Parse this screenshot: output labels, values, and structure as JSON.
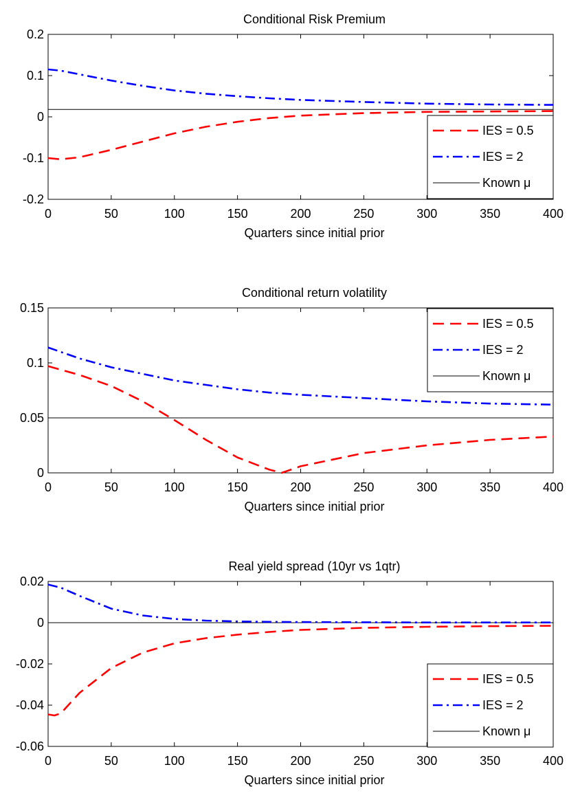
{
  "chart_data": [
    {
      "type": "line",
      "title": "Conditional Risk Premium",
      "xlabel": "Quarters since initial prior",
      "ylabel": "",
      "xlim": [
        0,
        400
      ],
      "ylim": [
        -0.2,
        0.2
      ],
      "xticks": [
        "0",
        "50",
        "100",
        "150",
        "200",
        "250",
        "300",
        "350",
        "400"
      ],
      "yticks": [
        "0.2",
        "0.1",
        "0",
        "-0.1",
        "-0.2"
      ],
      "grid": false,
      "legend_position": "bottom-right",
      "series": [
        {
          "name": "IES = 0.5",
          "color": "#ff0000",
          "style": "dashed",
          "x": [
            0,
            10,
            25,
            50,
            75,
            100,
            125,
            150,
            175,
            200,
            250,
            300,
            350,
            400
          ],
          "y": [
            -0.1,
            -0.103,
            -0.098,
            -0.08,
            -0.06,
            -0.04,
            -0.024,
            -0.012,
            -0.003,
            0.003,
            0.009,
            0.012,
            0.013,
            0.014
          ]
        },
        {
          "name": "IES = 2",
          "color": "#0000ff",
          "style": "dashdot",
          "x": [
            0,
            10,
            25,
            50,
            75,
            100,
            125,
            150,
            175,
            200,
            250,
            300,
            350,
            400
          ],
          "y": [
            0.115,
            0.112,
            0.103,
            0.088,
            0.075,
            0.064,
            0.056,
            0.05,
            0.045,
            0.041,
            0.036,
            0.032,
            0.03,
            0.029
          ]
        },
        {
          "name": "Known μ",
          "color": "#000000",
          "style": "solid",
          "x": [
            0,
            400
          ],
          "y": [
            0.018,
            0.018
          ]
        }
      ]
    },
    {
      "type": "line",
      "title": "Conditional return volatility",
      "xlabel": "Quarters since initial prior",
      "ylabel": "",
      "xlim": [
        0,
        400
      ],
      "ylim": [
        0,
        0.15
      ],
      "xticks": [
        "0",
        "50",
        "100",
        "150",
        "200",
        "250",
        "300",
        "350",
        "400"
      ],
      "yticks": [
        "0.15",
        "0.1",
        "0.05",
        "0"
      ],
      "grid": false,
      "legend_position": "top-right",
      "series": [
        {
          "name": "IES = 0.5",
          "color": "#ff0000",
          "style": "dashed",
          "x": [
            0,
            25,
            50,
            75,
            100,
            125,
            150,
            175,
            185,
            200,
            250,
            300,
            350,
            400
          ],
          "y": [
            0.097,
            0.089,
            0.079,
            0.065,
            0.048,
            0.03,
            0.014,
            0.003,
            0.0,
            0.006,
            0.018,
            0.025,
            0.03,
            0.033
          ]
        },
        {
          "name": "IES = 2",
          "color": "#0000ff",
          "style": "dashdot",
          "x": [
            0,
            25,
            50,
            75,
            100,
            125,
            150,
            175,
            200,
            250,
            300,
            350,
            400
          ],
          "y": [
            0.114,
            0.104,
            0.096,
            0.09,
            0.084,
            0.08,
            0.076,
            0.073,
            0.071,
            0.068,
            0.065,
            0.063,
            0.062
          ]
        },
        {
          "name": "Known μ",
          "color": "#000000",
          "style": "solid",
          "x": [
            0,
            400
          ],
          "y": [
            0.05,
            0.05
          ]
        }
      ]
    },
    {
      "type": "line",
      "title": "Real yield spread (10yr vs 1qtr)",
      "xlabel": "Quarters since initial prior",
      "ylabel": "",
      "xlim": [
        0,
        400
      ],
      "ylim": [
        -0.06,
        0.02
      ],
      "xticks": [
        "0",
        "50",
        "100",
        "150",
        "200",
        "250",
        "300",
        "350",
        "400"
      ],
      "yticks": [
        "0.02",
        "0",
        "-0.02",
        "-0.04",
        "-0.06"
      ],
      "grid": false,
      "legend_position": "bottom-right",
      "series": [
        {
          "name": "IES = 0.5",
          "color": "#ff0000",
          "style": "dashed",
          "x": [
            0,
            5,
            10,
            25,
            50,
            75,
            100,
            125,
            150,
            175,
            200,
            250,
            300,
            350,
            400
          ],
          "y": [
            -0.0445,
            -0.045,
            -0.044,
            -0.034,
            -0.022,
            -0.0145,
            -0.01,
            -0.0075,
            -0.0058,
            -0.0045,
            -0.0035,
            -0.0025,
            -0.002,
            -0.0017,
            -0.0015
          ]
        },
        {
          "name": "IES = 2",
          "color": "#0000ff",
          "style": "dashdot",
          "x": [
            0,
            10,
            25,
            50,
            75,
            100,
            125,
            150,
            175,
            200,
            250,
            300,
            350,
            400
          ],
          "y": [
            0.0185,
            0.017,
            0.013,
            0.0068,
            0.0035,
            0.0018,
            0.001,
            0.0006,
            0.0004,
            0.0003,
            0.0002,
            0.0001,
            0.0001,
            0.0001
          ]
        },
        {
          "name": "Known μ",
          "color": "#000000",
          "style": "solid",
          "x": [
            0,
            400
          ],
          "y": [
            0.0,
            0.0
          ]
        }
      ]
    }
  ]
}
